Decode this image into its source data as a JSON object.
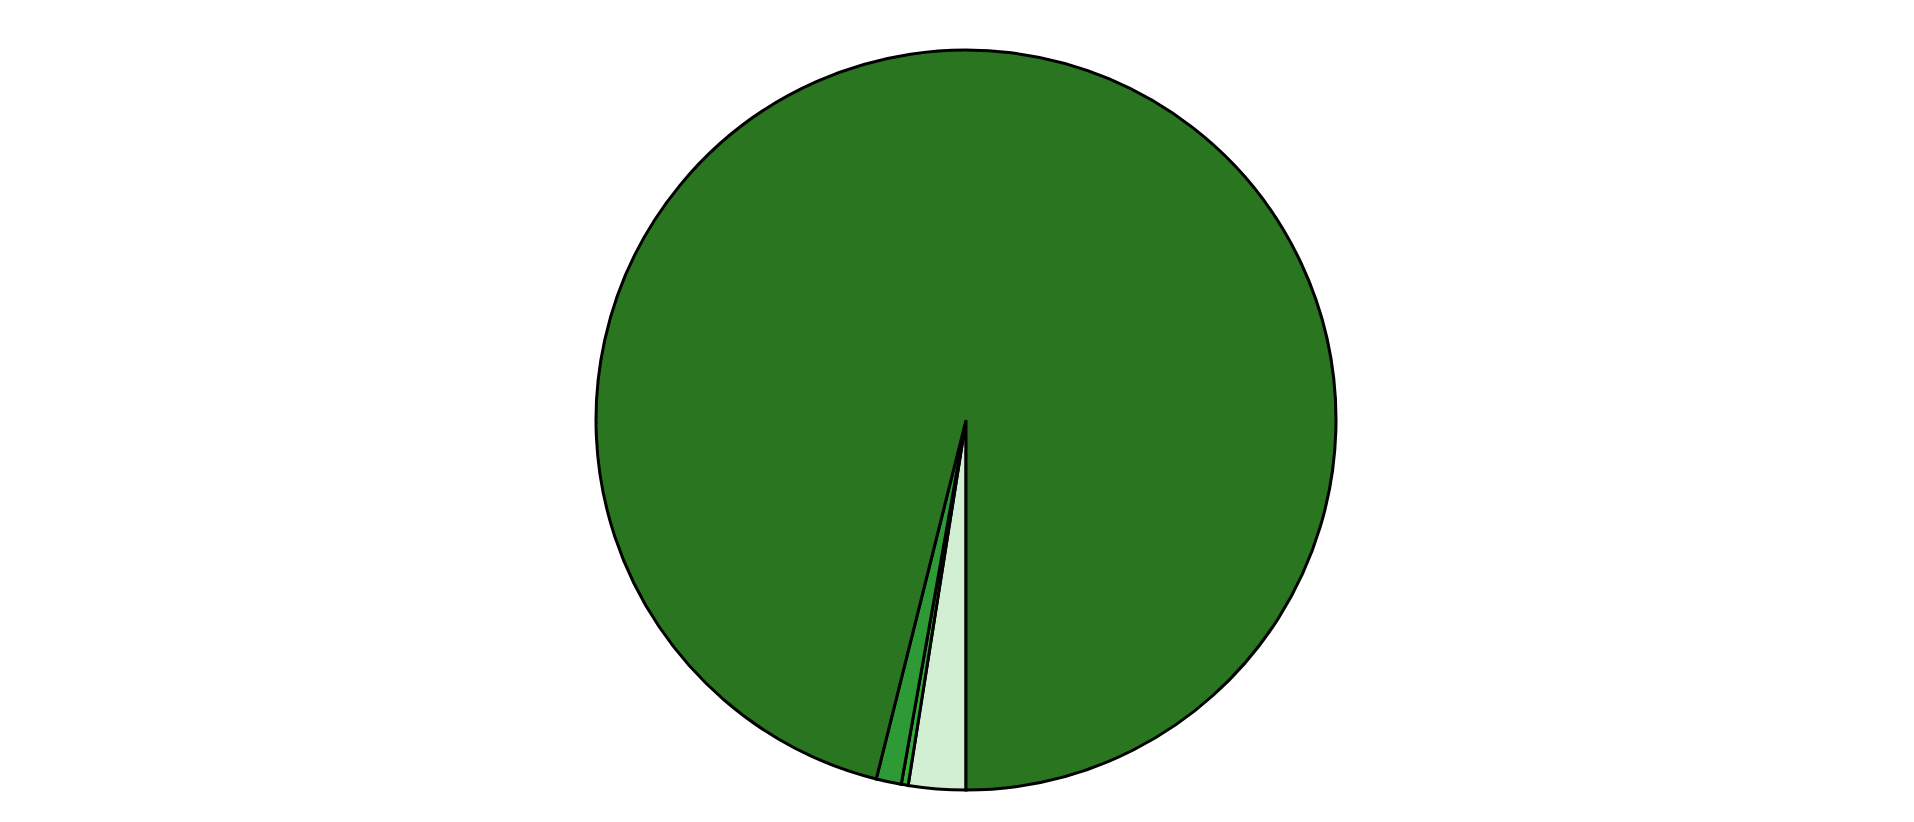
{
  "chart_data": {
    "type": "pie",
    "categories": [
      null,
      null,
      null,
      null
    ],
    "values": [
      2.5,
      0.3,
      1.1,
      96.1
    ],
    "colors": [
      "#d3efd3",
      "#3aaa3a",
      "#2e9a35",
      "#2a7520"
    ],
    "legend": false
  }
}
